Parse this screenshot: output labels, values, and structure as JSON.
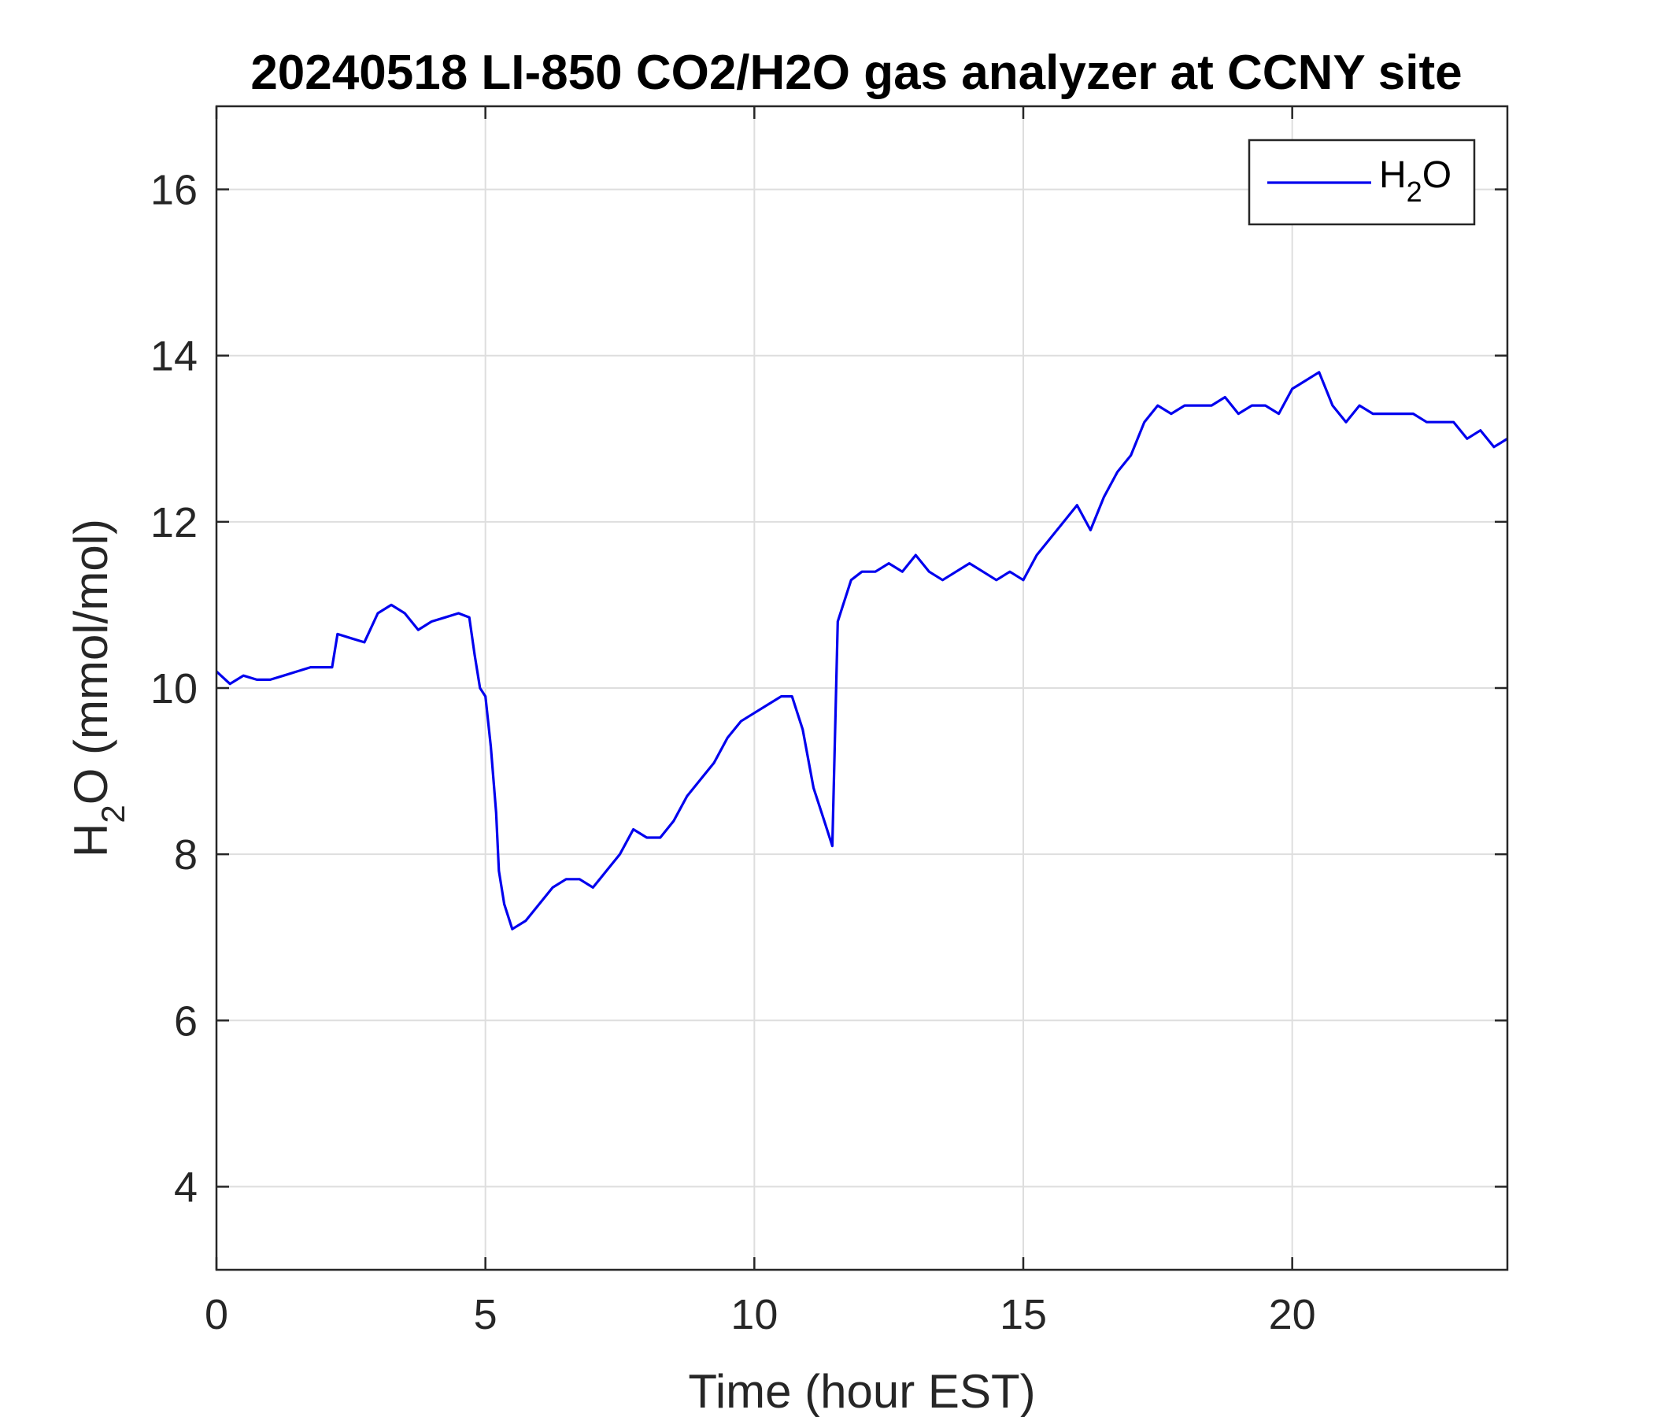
{
  "chart_data": {
    "type": "line",
    "title": "20240518 LI-850 CO2/H2O gas analyzer at CCNY site",
    "xlabel": "Time (hour EST)",
    "ylabel": {
      "main": "H",
      "sub": "2",
      "rest": "O (mmol/mol)"
    },
    "xlim": [
      0,
      24
    ],
    "ylim": [
      3,
      17
    ],
    "xticks": [
      0,
      5,
      10,
      15,
      20
    ],
    "yticks": [
      4,
      6,
      8,
      10,
      12,
      14,
      16
    ],
    "grid": true,
    "legend_position": "top-right",
    "series": [
      {
        "name": {
          "main": "H",
          "sub": "2",
          "rest": "O"
        },
        "color": "#0000ee",
        "x": [
          0,
          0.25,
          0.5,
          0.75,
          1.0,
          1.25,
          1.5,
          1.75,
          2.0,
          2.15,
          2.25,
          2.5,
          2.75,
          3.0,
          3.25,
          3.5,
          3.75,
          4.0,
          4.25,
          4.5,
          4.7,
          4.8,
          4.9,
          5.0,
          5.1,
          5.2,
          5.25,
          5.35,
          5.5,
          5.75,
          6.0,
          6.25,
          6.5,
          6.75,
          7.0,
          7.25,
          7.5,
          7.75,
          8.0,
          8.25,
          8.5,
          8.75,
          9.0,
          9.25,
          9.5,
          9.75,
          10.0,
          10.25,
          10.5,
          10.7,
          10.9,
          11.1,
          11.3,
          11.45,
          11.55,
          11.65,
          11.8,
          12.0,
          12.25,
          12.5,
          12.75,
          13.0,
          13.25,
          13.5,
          13.75,
          14.0,
          14.25,
          14.5,
          14.75,
          15.0,
          15.25,
          15.5,
          15.75,
          16.0,
          16.25,
          16.5,
          16.75,
          17.0,
          17.25,
          17.5,
          17.75,
          18.0,
          18.25,
          18.5,
          18.75,
          19.0,
          19.25,
          19.5,
          19.75,
          20.0,
          20.25,
          20.5,
          20.75,
          21.0,
          21.25,
          21.5,
          21.75,
          22.0,
          22.25,
          22.5,
          22.75,
          23.0,
          23.25,
          23.5,
          23.75,
          24.0
        ],
        "y": [
          10.2,
          10.05,
          10.15,
          10.1,
          10.1,
          10.15,
          10.2,
          10.25,
          10.25,
          10.25,
          10.65,
          10.6,
          10.55,
          10.9,
          11.0,
          10.9,
          10.7,
          10.8,
          10.85,
          10.9,
          10.85,
          10.4,
          10.0,
          9.9,
          9.3,
          8.5,
          7.8,
          7.4,
          7.1,
          7.2,
          7.4,
          7.6,
          7.7,
          7.7,
          7.6,
          7.8,
          8.0,
          8.3,
          8.2,
          8.2,
          8.4,
          8.7,
          8.9,
          9.1,
          9.4,
          9.6,
          9.7,
          9.8,
          9.9,
          9.9,
          9.5,
          8.8,
          8.4,
          8.1,
          10.8,
          11.0,
          11.3,
          11.4,
          11.4,
          11.5,
          11.4,
          11.6,
          11.4,
          11.3,
          11.4,
          11.5,
          11.4,
          11.3,
          11.4,
          11.3,
          11.6,
          11.8,
          12.0,
          12.2,
          11.9,
          12.3,
          12.6,
          12.8,
          13.2,
          13.4,
          13.3,
          13.4,
          13.4,
          13.4,
          13.5,
          13.3,
          13.4,
          13.4,
          13.3,
          13.6,
          13.7,
          13.8,
          13.4,
          13.2,
          13.4,
          13.3,
          13.3,
          13.3,
          13.3,
          13.2,
          13.2,
          13.2,
          13.0,
          13.1,
          12.9,
          13.0
        ]
      }
    ]
  }
}
